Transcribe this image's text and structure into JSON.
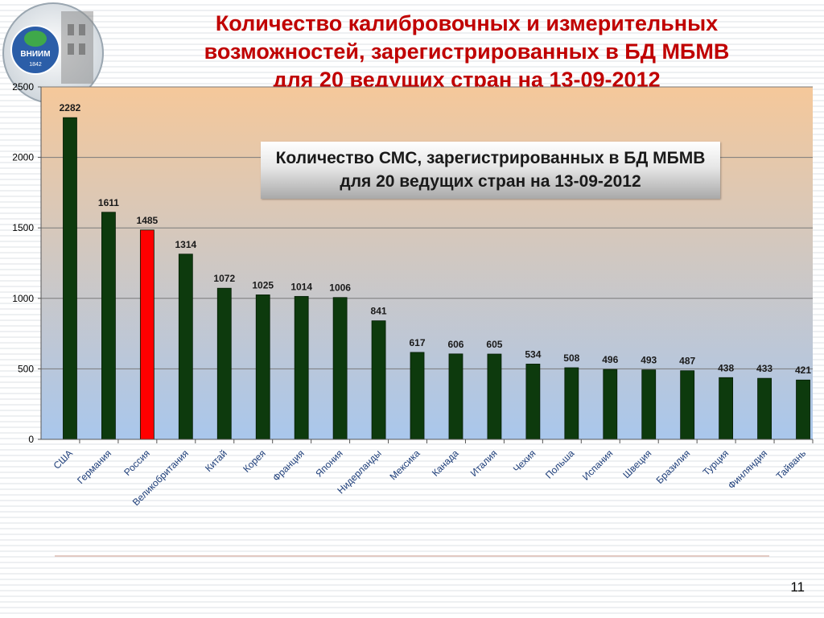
{
  "slide": {
    "title": "Количество калибровочных и измерительных\nвозможностей, зарегистрированных в БД МБМВ\nдля 20 ведущих стран на 13-09-2012",
    "page_number": "11",
    "logo_text": "ВНИИМ",
    "logo_year": "1842"
  },
  "chart_data": {
    "type": "bar",
    "title": "Количество СМС, зарегистрированных в БД МБМВ\nдля 20 ведущих стран на 13-09-2012",
    "xlabel": "",
    "ylabel": "",
    "ylim": [
      0,
      2500
    ],
    "yticks": [
      0,
      500,
      1000,
      1500,
      2000,
      2500
    ],
    "grid": true,
    "categories": [
      "США",
      "Германия",
      "Россия",
      "Великобритания",
      "Китай",
      "Корея",
      "Франция",
      "Япония",
      "Нидерланды",
      "Мексика",
      "Канада",
      "Италия",
      "Чехия",
      "Польша",
      "Испания",
      "Швеция",
      "Бразилия",
      "Турция",
      "Финляндия",
      "Тайвань"
    ],
    "values": [
      2282,
      1611,
      1485,
      1314,
      1072,
      1025,
      1014,
      1006,
      841,
      617,
      606,
      605,
      534,
      508,
      496,
      493,
      487,
      438,
      433,
      421
    ],
    "bar_color": "#0d3a0d",
    "highlight_color": "#ff0000",
    "highlight_index": 2,
    "plot_background": [
      "#f5c89a",
      "#a9c7ec"
    ]
  }
}
